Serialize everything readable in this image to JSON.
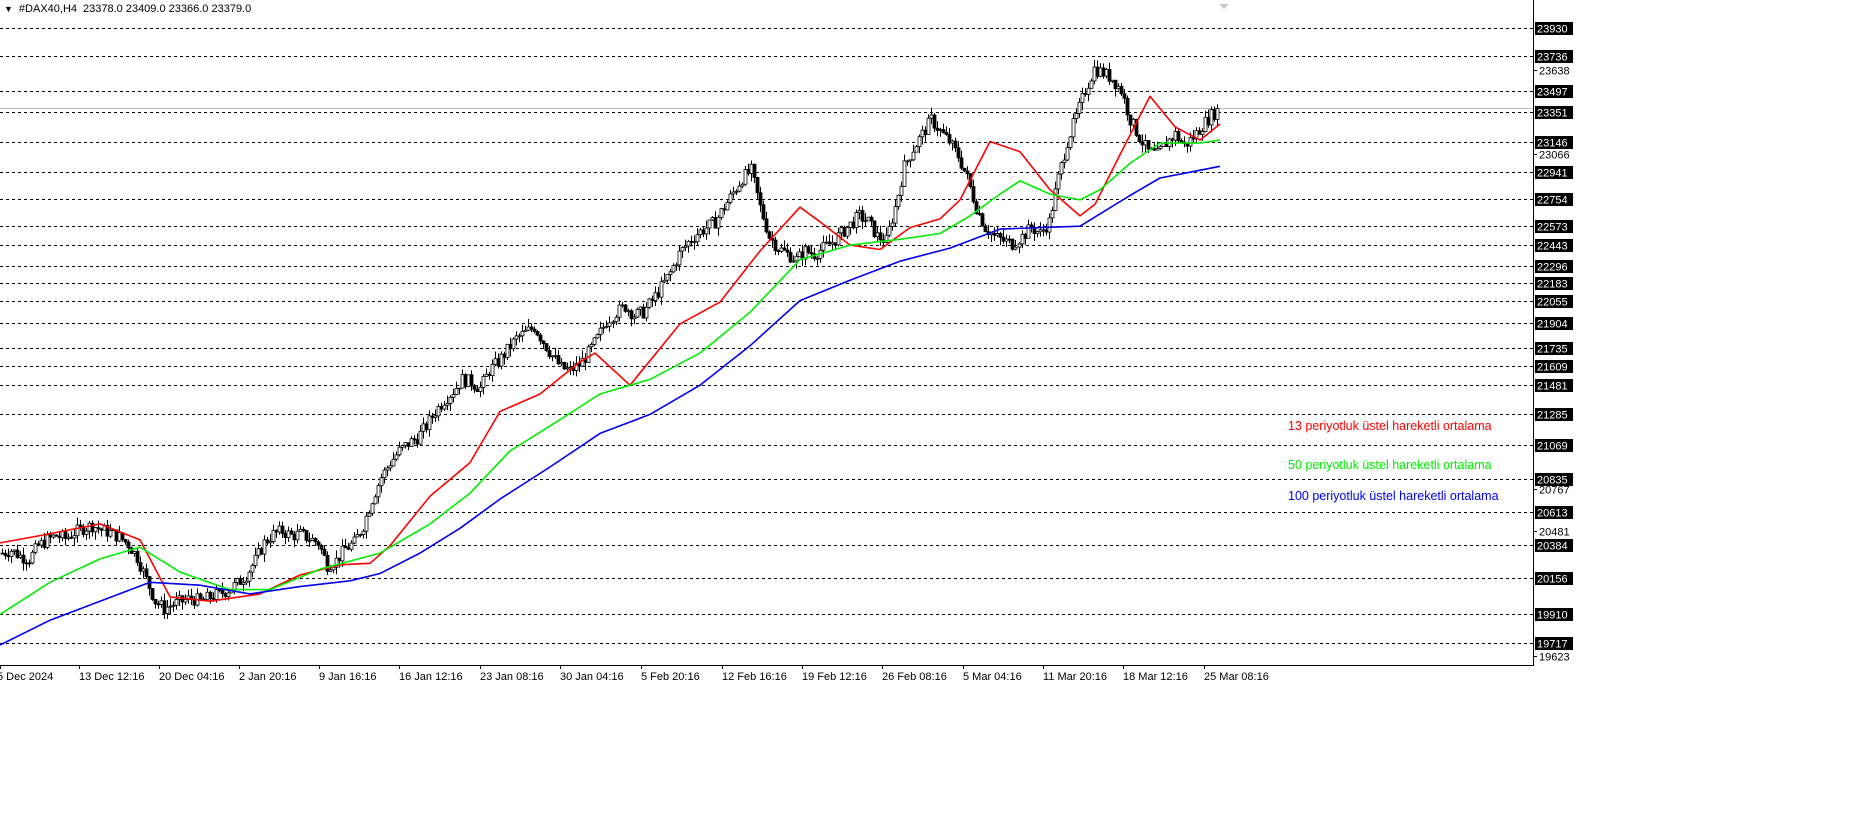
{
  "header": {
    "symbol": "#DAX40,H4",
    "ohlc": "23378.0 23409.0 23366.0 23379.0"
  },
  "colors": {
    "background": "#ffffff",
    "grid": "#000000",
    "candle": "#000000",
    "ema13": "#ff0000",
    "ema50": "#00ee00",
    "ema100": "#0000ee",
    "price_label_bg": "#000000",
    "price_label_text": "#ffffff"
  },
  "icons": {
    "menu": "triangle-down-icon",
    "scroll_marker": "triangle-down-icon"
  },
  "chart_data": {
    "type": "line",
    "title": "#DAX40,H4",
    "ylim": [
      19570,
      24010
    ],
    "price_levels": [
      23930,
      23736,
      23497,
      23351,
      23146,
      22941,
      22754,
      22573,
      22443,
      22296,
      22183,
      22055,
      21904,
      21735,
      21609,
      21481,
      21285,
      21069,
      20835,
      20613,
      20384,
      20156,
      19910,
      19717
    ],
    "axis_ticks": [
      23638,
      23066,
      20767,
      20481,
      19623
    ],
    "x_tick_labels": [
      "5 Dec 2024",
      "13 Dec 12:16",
      "20 Dec 04:16",
      "2 Jan 20:16",
      "9 Jan 16:16",
      "16 Jan 12:16",
      "23 Jan 08:16",
      "30 Jan 04:16",
      "5 Feb 20:16",
      "12 Feb 16:16",
      "19 Feb 12:16",
      "26 Feb 08:16",
      "5 Mar 04:16",
      "11 Mar 20:16",
      "18 Mar 12:16",
      "25 Mar 08:16"
    ],
    "close_series": [
      20330,
      20350,
      20310,
      20290,
      20380,
      20420,
      20450,
      20430,
      20470,
      20500,
      20520,
      20490,
      20470,
      20440,
      20390,
      20300,
      20150,
      20000,
      19950,
      19980,
      20000,
      20020,
      20000,
      20030,
      20050,
      20080,
      20120,
      20180,
      20280,
      20400,
      20460,
      20480,
      20450,
      20460,
      20430,
      20400,
      20250,
      20280,
      20360,
      20400,
      20520,
      20700,
      20850,
      20950,
      21030,
      21080,
      21120,
      21200,
      21300,
      21380,
      21440,
      21520,
      21500,
      21460,
      21580,
      21640,
      21720,
      21800,
      21840,
      21880,
      21780,
      21680,
      21600,
      21580,
      21620,
      21700,
      21800,
      21920,
      21980,
      22020,
      21960,
      21980,
      22060,
      22150,
      22250,
      22380,
      22460,
      22520,
      22560,
      22600,
      22700,
      22800,
      22900,
      22950,
      22700,
      22500,
      22420,
      22380,
      22340,
      22400,
      22380,
      22420,
      22460,
      22520,
      22580,
      22640,
      22600,
      22500,
      22470,
      22700,
      22980,
      23100,
      23200,
      23300,
      23220,
      23150,
      23050,
      22900,
      22700,
      22560,
      22500,
      22470,
      22450,
      22500,
      22560,
      22520,
      22600,
      22900,
      23150,
      23320,
      23500,
      23650,
      23620,
      23580,
      23500,
      23300,
      23180,
      23080,
      23060,
      23140,
      23200,
      23120,
      23180,
      23260,
      23330,
      23379
    ],
    "series": [
      {
        "name": "13 periyotluk üstel hareketli ortalama",
        "color": "#ff0000",
        "points": [
          [
            0,
            20400
          ],
          [
            40,
            20450
          ],
          [
            100,
            20530
          ],
          [
            140,
            20420
          ],
          [
            170,
            20030
          ],
          [
            210,
            20000
          ],
          [
            260,
            20050
          ],
          [
            300,
            20180
          ],
          [
            340,
            20250
          ],
          [
            370,
            20260
          ],
          [
            390,
            20380
          ],
          [
            430,
            20720
          ],
          [
            470,
            20950
          ],
          [
            500,
            21300
          ],
          [
            540,
            21420
          ],
          [
            580,
            21640
          ],
          [
            595,
            21700
          ],
          [
            630,
            21480
          ],
          [
            680,
            21900
          ],
          [
            720,
            22050
          ],
          [
            760,
            22400
          ],
          [
            800,
            22700
          ],
          [
            820,
            22600
          ],
          [
            850,
            22440
          ],
          [
            880,
            22410
          ],
          [
            910,
            22560
          ],
          [
            940,
            22620
          ],
          [
            960,
            22750
          ],
          [
            990,
            23150
          ],
          [
            1020,
            23080
          ],
          [
            1050,
            22820
          ],
          [
            1080,
            22640
          ],
          [
            1095,
            22720
          ],
          [
            1120,
            23060
          ],
          [
            1150,
            23460
          ],
          [
            1175,
            23250
          ],
          [
            1200,
            23160
          ],
          [
            1220,
            23270
          ]
        ]
      },
      {
        "name": "50 periyotluk üstel hareketli ortalama",
        "color": "#00ee00",
        "points": [
          [
            0,
            19910
          ],
          [
            50,
            20130
          ],
          [
            100,
            20290
          ],
          [
            140,
            20370
          ],
          [
            180,
            20200
          ],
          [
            230,
            20080
          ],
          [
            270,
            20080
          ],
          [
            320,
            20220
          ],
          [
            380,
            20330
          ],
          [
            430,
            20530
          ],
          [
            470,
            20740
          ],
          [
            510,
            21030
          ],
          [
            550,
            21200
          ],
          [
            600,
            21420
          ],
          [
            650,
            21520
          ],
          [
            700,
            21700
          ],
          [
            750,
            21980
          ],
          [
            800,
            22340
          ],
          [
            850,
            22440
          ],
          [
            900,
            22480
          ],
          [
            940,
            22520
          ],
          [
            970,
            22640
          ],
          [
            1000,
            22790
          ],
          [
            1020,
            22880
          ],
          [
            1050,
            22790
          ],
          [
            1080,
            22750
          ],
          [
            1100,
            22820
          ],
          [
            1130,
            23000
          ],
          [
            1160,
            23140
          ],
          [
            1200,
            23140
          ],
          [
            1220,
            23160
          ]
        ]
      },
      {
        "name": "100 periyotluk üstel hareketli ortalama",
        "color": "#0000ee",
        "points": [
          [
            0,
            19700
          ],
          [
            50,
            19870
          ],
          [
            100,
            20000
          ],
          [
            150,
            20130
          ],
          [
            200,
            20110
          ],
          [
            250,
            20050
          ],
          [
            300,
            20100
          ],
          [
            350,
            20140
          ],
          [
            380,
            20190
          ],
          [
            420,
            20330
          ],
          [
            460,
            20500
          ],
          [
            500,
            20700
          ],
          [
            550,
            20920
          ],
          [
            600,
            21150
          ],
          [
            650,
            21280
          ],
          [
            700,
            21480
          ],
          [
            750,
            21750
          ],
          [
            800,
            22060
          ],
          [
            850,
            22200
          ],
          [
            900,
            22330
          ],
          [
            950,
            22420
          ],
          [
            1000,
            22550
          ],
          [
            1040,
            22560
          ],
          [
            1080,
            22570
          ],
          [
            1130,
            22780
          ],
          [
            1160,
            22900
          ],
          [
            1190,
            22940
          ],
          [
            1220,
            22980
          ]
        ]
      }
    ]
  },
  "legend": [
    {
      "label": "13 periyotluk üstel hareketli ortalama",
      "color": "#ff0000"
    },
    {
      "label": "50 periyotluk üstel hareketli ortalama",
      "color": "#00ee00"
    },
    {
      "label": "100 periyotluk üstel hareketli ortalama",
      "color": "#0000ee"
    }
  ]
}
